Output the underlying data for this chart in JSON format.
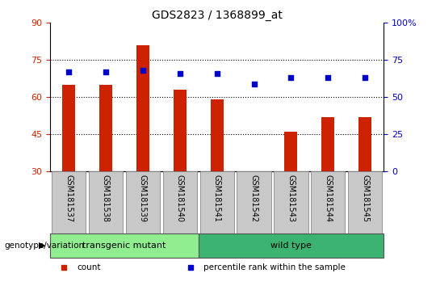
{
  "title": "GDS2823 / 1368899_at",
  "samples": [
    "GSM181537",
    "GSM181538",
    "GSM181539",
    "GSM181540",
    "GSM181541",
    "GSM181542",
    "GSM181543",
    "GSM181544",
    "GSM181545"
  ],
  "counts": [
    65,
    65,
    81,
    63,
    59,
    30,
    46,
    52,
    52
  ],
  "percentile_ranks": [
    67,
    67,
    68,
    66,
    66,
    59,
    63,
    63,
    63
  ],
  "groups": [
    {
      "label": "transgenic mutant",
      "color": "#90EE90",
      "start": 0,
      "end": 4
    },
    {
      "label": "wild type",
      "color": "#3CB371",
      "start": 4,
      "end": 9
    }
  ],
  "ylim_left": [
    30,
    90
  ],
  "ylim_right": [
    0,
    100
  ],
  "yticks_left": [
    30,
    45,
    60,
    75,
    90
  ],
  "yticks_right": [
    0,
    25,
    50,
    75,
    100
  ],
  "bar_color": "#CC2200",
  "dot_color": "#0000CC",
  "bar_width": 0.35,
  "legend_items": [
    {
      "label": "count",
      "color": "#CC2200"
    },
    {
      "label": "percentile rank within the sample",
      "color": "#0000CC"
    }
  ],
  "group_label": "genotype/variation",
  "grid_lines": [
    45,
    60,
    75
  ],
  "left_tick_color": "#CC2200",
  "right_tick_color": "#0000CC",
  "xlabel_bg_color": "#C8C8C8"
}
